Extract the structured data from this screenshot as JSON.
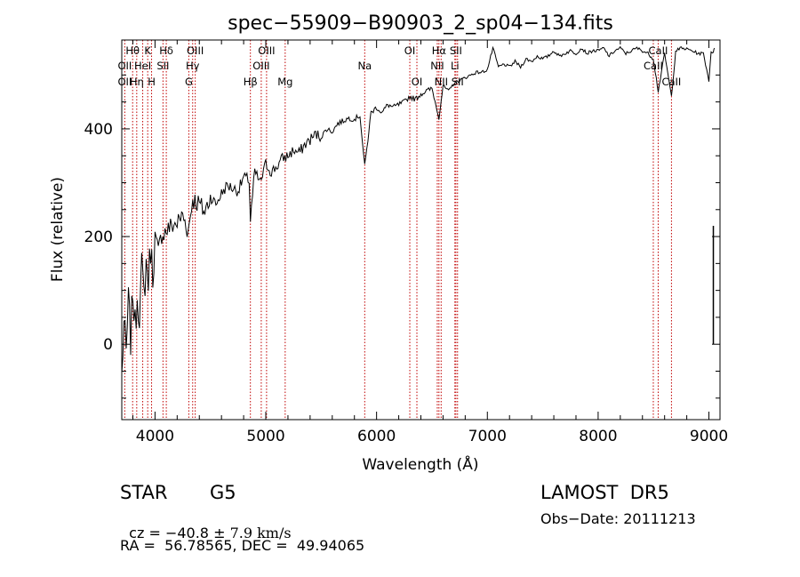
{
  "chart_data": {
    "type": "line",
    "title": "spec−55909−B90903_2_sp04−134.fits",
    "xlabel": "Wavelength (Å)",
    "ylabel": "Flux (relative)",
    "xlim": [
      3700,
      9100
    ],
    "ylim": [
      -140,
      565
    ],
    "xticks": [
      4000,
      5000,
      6000,
      7000,
      8000,
      9000
    ],
    "yticks": [
      0,
      200,
      400
    ],
    "series": [
      {
        "x": [
          3700,
          3720,
          3740,
          3760,
          3780,
          3800,
          3820,
          3840,
          3860,
          3880,
          3900,
          3920,
          3940,
          3960,
          3980,
          4000,
          4030,
          4060,
          4100,
          4150,
          4200,
          4250,
          4300,
          4340,
          4400,
          4450,
          4500,
          4550,
          4600,
          4650,
          4700,
          4750,
          4800,
          4850,
          4861,
          4900,
          4950,
          5000,
          5050,
          5100,
          5150,
          5200,
          5250,
          5300,
          5350,
          5400,
          5450,
          5500,
          5550,
          5600,
          5650,
          5700,
          5750,
          5800,
          5850,
          5893,
          5950,
          6000,
          6050,
          6100,
          6150,
          6200,
          6250,
          6300,
          6350,
          6400,
          6450,
          6500,
          6563,
          6600,
          6650,
          6700,
          6750,
          6800,
          6850,
          6900,
          6950,
          7000,
          7050,
          7100,
          7150,
          7200,
          7250,
          7300,
          7350,
          7400,
          7450,
          7500,
          7550,
          7600,
          7650,
          7700,
          7750,
          7800,
          7850,
          7900,
          7950,
          8000,
          8050,
          8100,
          8150,
          8200,
          8250,
          8300,
          8350,
          8400,
          8450,
          8498,
          8542,
          8600,
          8662,
          8700,
          8750,
          8800,
          8850,
          8900,
          8950,
          9000,
          9020,
          9040,
          9050
        ],
        "y": [
          -60,
          40,
          -20,
          80,
          10,
          100,
          30,
          90,
          60,
          140,
          90,
          150,
          120,
          180,
          130,
          200,
          170,
          205,
          210,
          220,
          225,
          240,
          210,
          270,
          260,
          245,
          275,
          260,
          280,
          295,
          290,
          285,
          310,
          305,
          230,
          320,
          300,
          335,
          320,
          330,
          345,
          350,
          360,
          355,
          370,
          380,
          390,
          385,
          400,
          395,
          410,
          415,
          420,
          418,
          425,
          330,
          430,
          440,
          430,
          445,
          440,
          445,
          450,
          460,
          455,
          465,
          470,
          475,
          420,
          480,
          470,
          485,
          490,
          495,
          500,
          505,
          505,
          510,
          550,
          515,
          520,
          515,
          525,
          515,
          530,
          525,
          535,
          530,
          535,
          545,
          535,
          540,
          545,
          540,
          550,
          540,
          545,
          545,
          550,
          535,
          545,
          550,
          540,
          545,
          550,
          545,
          540,
          530,
          470,
          540,
          460,
          545,
          550,
          548,
          545,
          540,
          540,
          490,
          545,
          540,
          550
        ]
      }
    ],
    "line_labels": [
      {
        "text": "Hθ",
        "x": 3798,
        "row": 1
      },
      {
        "text": "OII",
        "x": 3727,
        "row": 2
      },
      {
        "text": "OII",
        "x": 3727,
        "row": 3
      },
      {
        "text": "K",
        "x": 3934,
        "row": 1
      },
      {
        "text": "HeI",
        "x": 3889,
        "row": 2
      },
      {
        "text": "Hη",
        "x": 3835,
        "row": 3
      },
      {
        "text": "H",
        "x": 3969,
        "row": 3
      },
      {
        "text": "Hδ",
        "x": 4102,
        "row": 1
      },
      {
        "text": "SII",
        "x": 4072,
        "row": 2
      },
      {
        "text": "OIII",
        "x": 4363,
        "row": 1
      },
      {
        "text": "Hγ",
        "x": 4340,
        "row": 2
      },
      {
        "text": "G",
        "x": 4305,
        "row": 3
      },
      {
        "text": "OIII",
        "x": 5007,
        "row": 1
      },
      {
        "text": "OIII",
        "x": 4959,
        "row": 2
      },
      {
        "text": "Hβ",
        "x": 4861,
        "row": 3
      },
      {
        "text": "Mg",
        "x": 5175,
        "row": 3
      },
      {
        "text": "Na",
        "x": 5893,
        "row": 2
      },
      {
        "text": "OI",
        "x": 6300,
        "row": 1
      },
      {
        "text": "OI",
        "x": 6364,
        "row": 3
      },
      {
        "text": "Hα",
        "x": 6563,
        "row": 1
      },
      {
        "text": "SII",
        "x": 6716,
        "row": 1
      },
      {
        "text": "NII",
        "x": 6548,
        "row": 2
      },
      {
        "text": "Li",
        "x": 6707,
        "row": 2
      },
      {
        "text": "NII",
        "x": 6583,
        "row": 3
      },
      {
        "text": "SII",
        "x": 6731,
        "row": 3
      },
      {
        "text": "CaII",
        "x": 8542,
        "row": 1
      },
      {
        "text": "CaII",
        "x": 8498,
        "row": 2
      },
      {
        "text": "CaII",
        "x": 8662,
        "row": 3
      }
    ],
    "marker_lines": [
      3727,
      3798,
      3835,
      3889,
      3934,
      3969,
      4072,
      4102,
      4305,
      4340,
      4363,
      4861,
      4959,
      5007,
      5175,
      5893,
      6300,
      6364,
      6548,
      6563,
      6583,
      6707,
      6716,
      6731,
      8498,
      8542,
      8662
    ],
    "colors": {
      "axes": "#000000",
      "spectrum": "#000000",
      "lines": "#c00000",
      "background": "#ffffff"
    }
  },
  "info": {
    "class_label": "STAR",
    "subclass": "G5",
    "survey": "LAMOST  DR5",
    "cz_prefix": "cz = −40.8 ± ",
    "cz_value": "7.9 km/s",
    "obs_date": "Obs−Date: 20111213",
    "coords": "RA =  56.78565, DEC =  49.94065"
  }
}
